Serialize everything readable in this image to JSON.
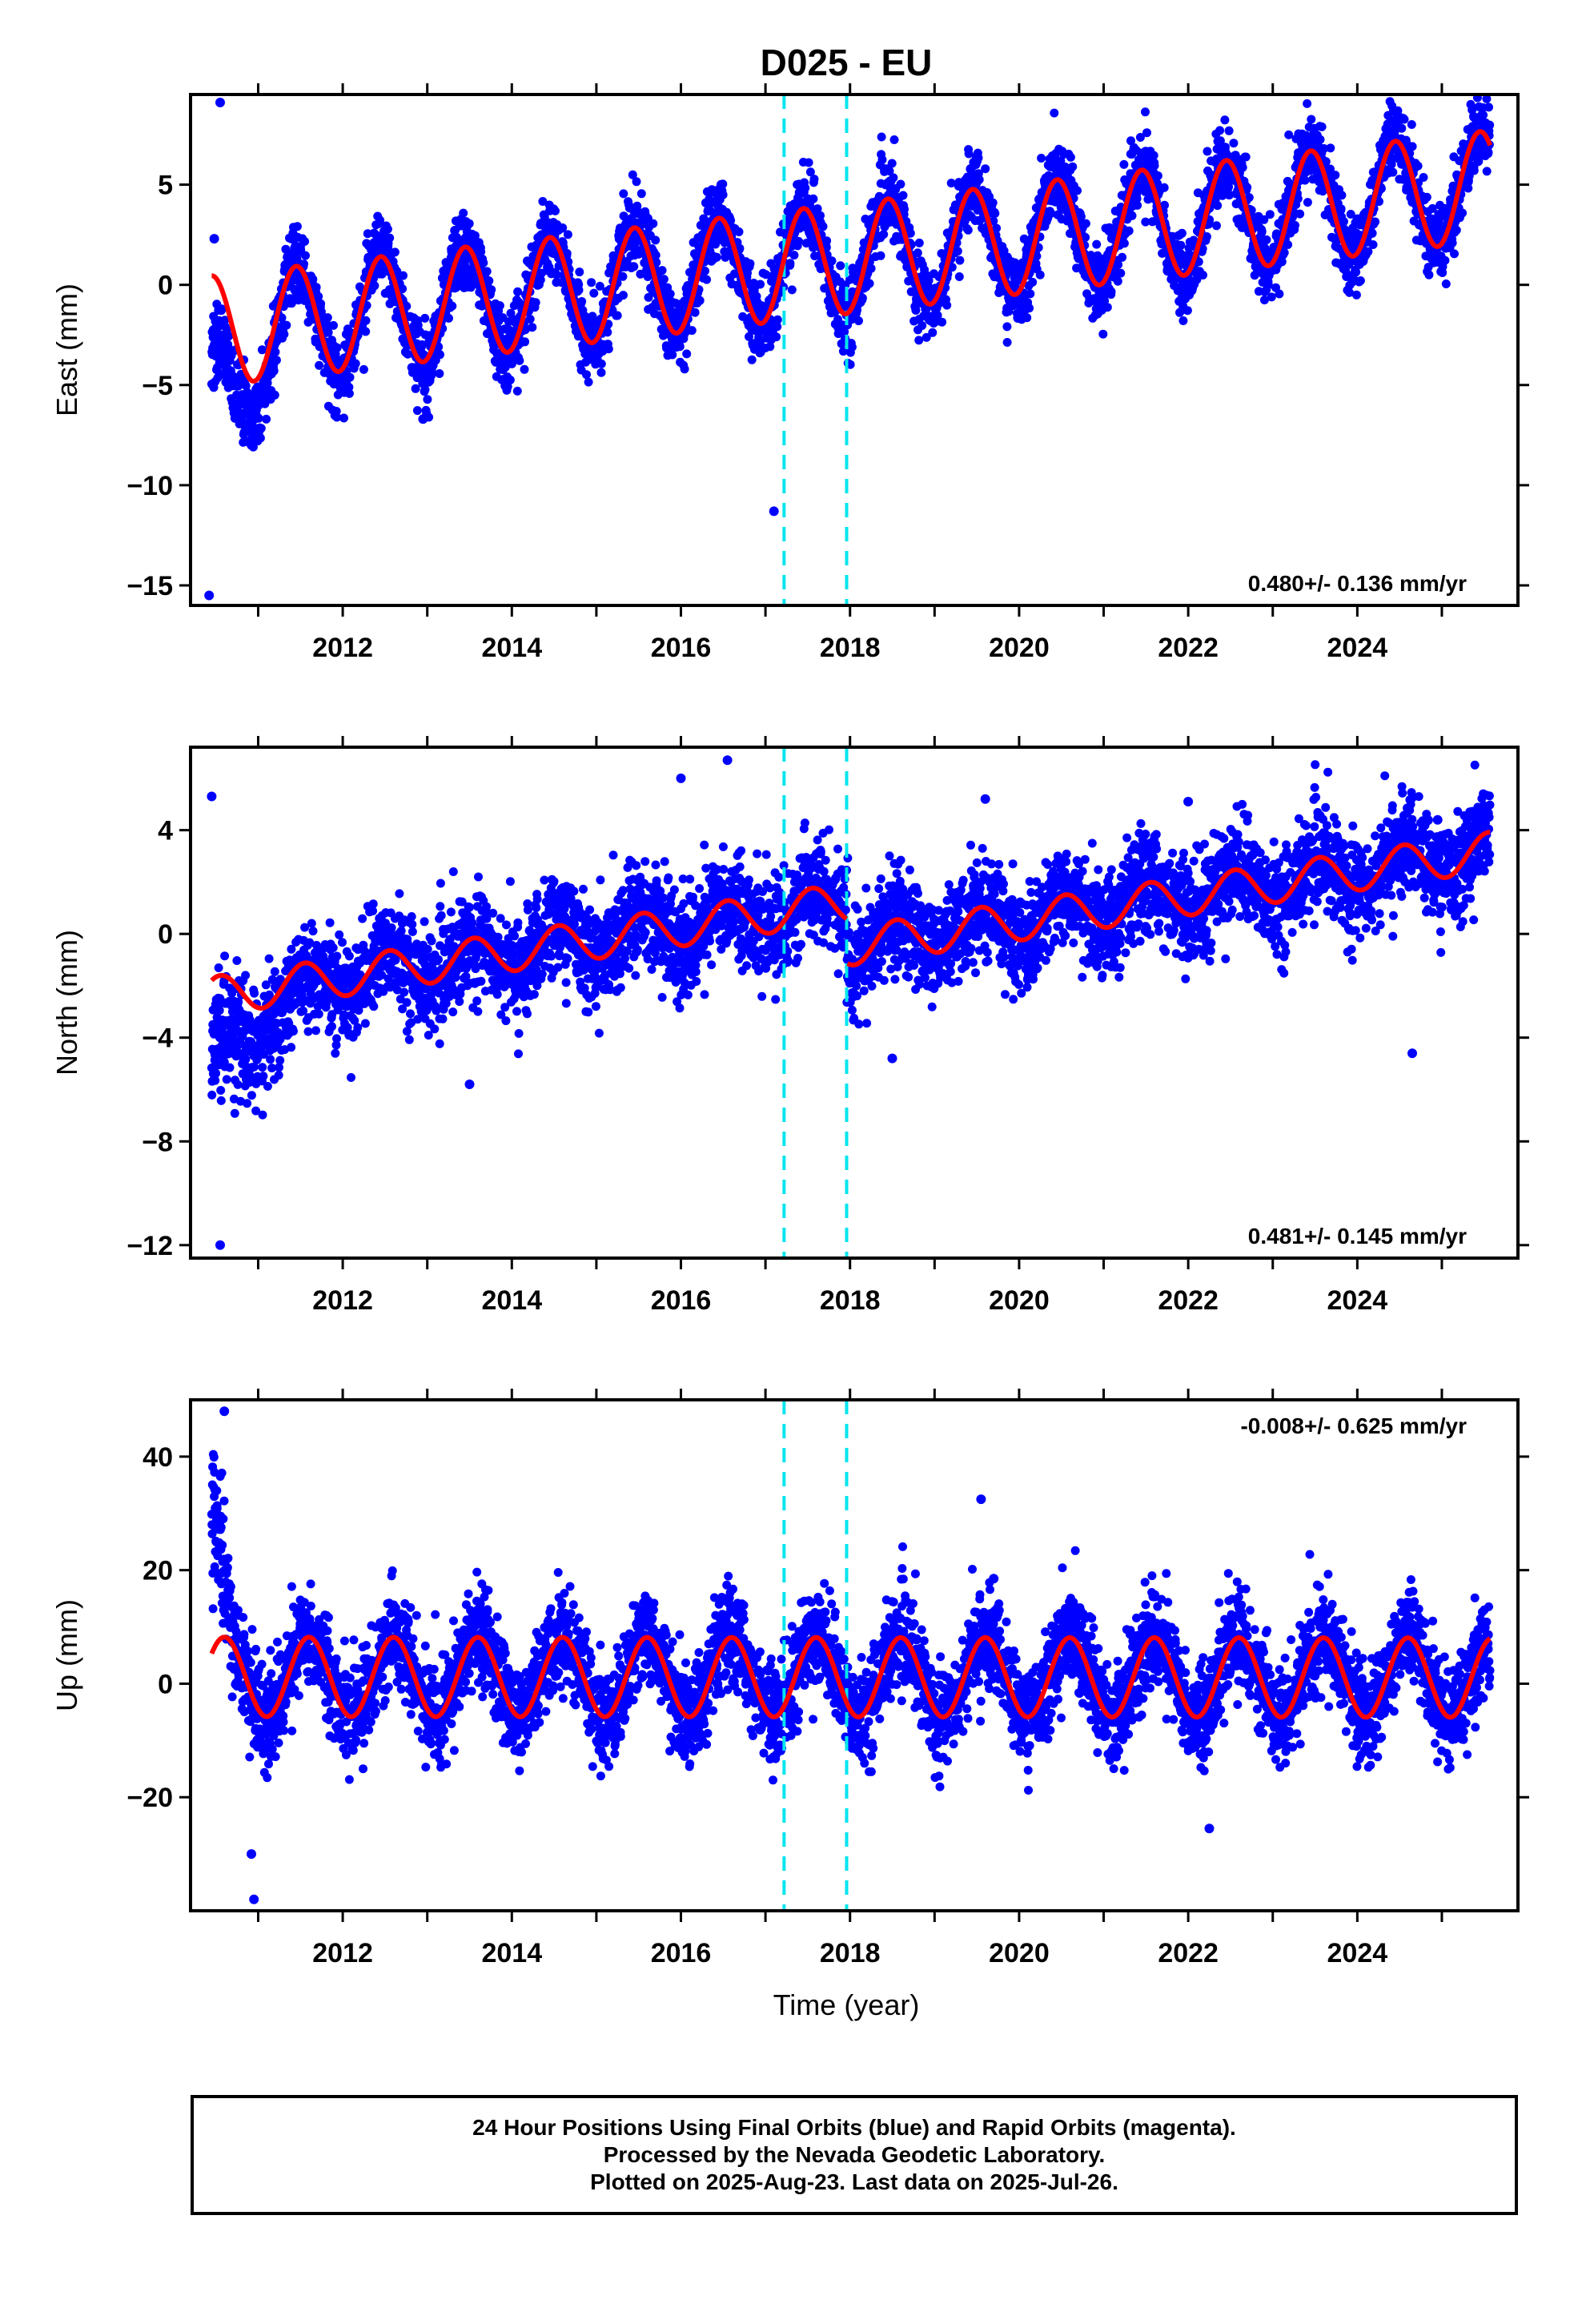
{
  "figure": {
    "title": "D025 - EU",
    "xlabel": "Time (year)",
    "footer_lines": [
      "24 Hour Positions Using Final Orbits (blue) and Rapid Orbits (magenta).",
      "Processed by the Nevada Geodetic Laboratory.",
      "Plotted on 2025-Aug-23. Last data on 2025-Jul-26."
    ],
    "colors": {
      "data": "#0000ff",
      "model": "#ff0000",
      "offset": "#00e5ee",
      "frame": "#000000"
    }
  },
  "chart_data": [
    {
      "type": "scatter",
      "name": "east",
      "ylabel": "East (mm)",
      "rate_label": "0.480+/- 0.136 mm/yr",
      "rate_position": "bottom-right",
      "xlim": [
        2010.2,
        2025.9
      ],
      "ylim": [
        -16,
        9.5
      ],
      "yticks": [
        5,
        0,
        -5,
        -10,
        -15
      ],
      "xticks": [
        2012,
        2014,
        2016,
        2018,
        2020,
        2022,
        2024
      ],
      "offsets": [
        2017.22,
        2017.96
      ],
      "data_range": [
        2010.45,
        2025.57
      ],
      "model": {
        "trend_start": -2.3,
        "rate": 0.48,
        "amplitude": 2.75,
        "peak_phase": 0.45
      },
      "noise_sd": 0.9,
      "early_anomaly": {
        "until": 2011.4,
        "shift": -3.2
      },
      "outliers": [
        [
          2010.55,
          9.1
        ],
        [
          2010.42,
          -15.5
        ],
        [
          2017.1,
          -11.3
        ],
        [
          2012.95,
          -6.7
        ],
        [
          2010.48,
          2.3
        ]
      ]
    },
    {
      "type": "scatter",
      "name": "north",
      "ylabel": "North (mm)",
      "rate_label": "0.481+/- 0.145 mm/yr",
      "rate_position": "bottom-right",
      "xlim": [
        2010.2,
        2025.9
      ],
      "ylim": [
        -12.5,
        7.2
      ],
      "yticks": [
        4,
        0,
        -4,
        -8,
        -12
      ],
      "xticks": [
        2012,
        2014,
        2016,
        2018,
        2020,
        2022,
        2024
      ],
      "offsets": [
        2017.22,
        2017.96
      ],
      "data_range": [
        2010.45,
        2025.57
      ],
      "model": {
        "trend_start": -2.4,
        "rate": 0.481,
        "amplitude": 0.75,
        "peak_phase": 0.55,
        "segment_breaks": [
          [
            2017.96,
            -1.7
          ]
        ]
      },
      "noise_sd": 0.95,
      "early_anomaly": {
        "until": 2011.8,
        "shift": -2.5
      },
      "outliers": [
        [
          2010.45,
          5.3
        ],
        [
          2010.55,
          -12.0
        ],
        [
          2016.0,
          6.0
        ],
        [
          2016.55,
          6.7
        ],
        [
          2019.6,
          5.2
        ],
        [
          2022.0,
          5.1
        ],
        [
          2024.95,
          4.4
        ],
        [
          2013.5,
          -5.8
        ],
        [
          2018.5,
          -4.8
        ],
        [
          2024.65,
          -4.6
        ]
      ]
    },
    {
      "type": "scatter",
      "name": "up",
      "ylabel": "Up (mm)",
      "rate_label": "-0.008+/- 0.625 mm/yr",
      "rate_position": "top-right",
      "xlim": [
        2010.2,
        2025.9
      ],
      "ylim": [
        -40,
        50
      ],
      "yticks": [
        40,
        20,
        0,
        -20
      ],
      "xticks": [
        2012,
        2014,
        2016,
        2018,
        2020,
        2022,
        2024
      ],
      "offsets": [
        2017.22,
        2017.96
      ],
      "data_range": [
        2010.45,
        2025.57
      ],
      "model": {
        "trend_start": 1.2,
        "rate": -0.008,
        "amplitude": 7.0,
        "peak_phase": 0.6
      },
      "noise_sd": 4.2,
      "early_anomaly": {
        "until": 2010.75,
        "shift": 25
      },
      "outliers": [
        [
          2010.6,
          48
        ],
        [
          2019.55,
          32.5
        ],
        [
          2010.95,
          -38
        ],
        [
          2010.92,
          -30
        ],
        [
          2022.25,
          -25.5
        ],
        [
          2019.7,
          18.5
        ]
      ]
    }
  ]
}
